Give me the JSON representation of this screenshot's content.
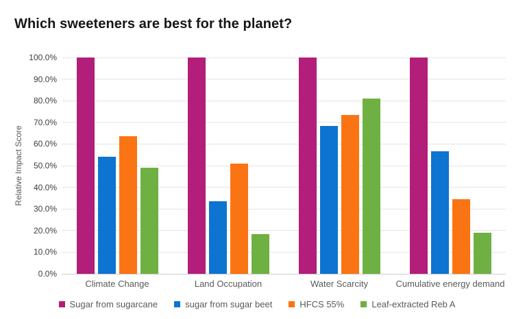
{
  "page": {
    "title": "Which sweeteners are best for the planet?"
  },
  "chart_data": {
    "type": "bar",
    "title": "Which sweeteners are best for the planet?",
    "xlabel": "",
    "ylabel": "Relative Impact Score",
    "ylim": [
      0,
      100
    ],
    "ytick_step": 10,
    "ytick_suffix": "%",
    "grid": true,
    "legend_position": "bottom",
    "categories": [
      "Climate Change",
      "Land Occupation",
      "Water Scarcity",
      "Cumulative energy demand"
    ],
    "series": [
      {
        "name": "Sugar from sugarcane",
        "color": "#b21e79",
        "values": [
          100,
          100,
          100,
          100
        ]
      },
      {
        "name": "sugar from sugar beet",
        "color": "#0e74d1",
        "values": [
          54,
          33.5,
          68.5,
          56.5
        ]
      },
      {
        "name": "HFCS 55%",
        "color": "#fb7414",
        "values": [
          63.5,
          51,
          73.5,
          34.5
        ]
      },
      {
        "name": "Leaf-extracted Reb A",
        "color": "#6fb043",
        "values": [
          49,
          18.5,
          81,
          19
        ]
      }
    ],
    "ytick_labels": [
      "100.0%",
      "90.0%",
      "80.0%",
      "70.0%",
      "60.0%",
      "50.0%",
      "40.0%",
      "30.0%",
      "20.0%",
      "10.0%",
      "0.0%"
    ]
  },
  "colors": {
    "background": "#ffffff",
    "gridline": "#e4e4e4",
    "axis_line": "#cccccc",
    "title_text": "#161616",
    "tick_text": "#3d3d3d",
    "label_text": "#595959"
  }
}
